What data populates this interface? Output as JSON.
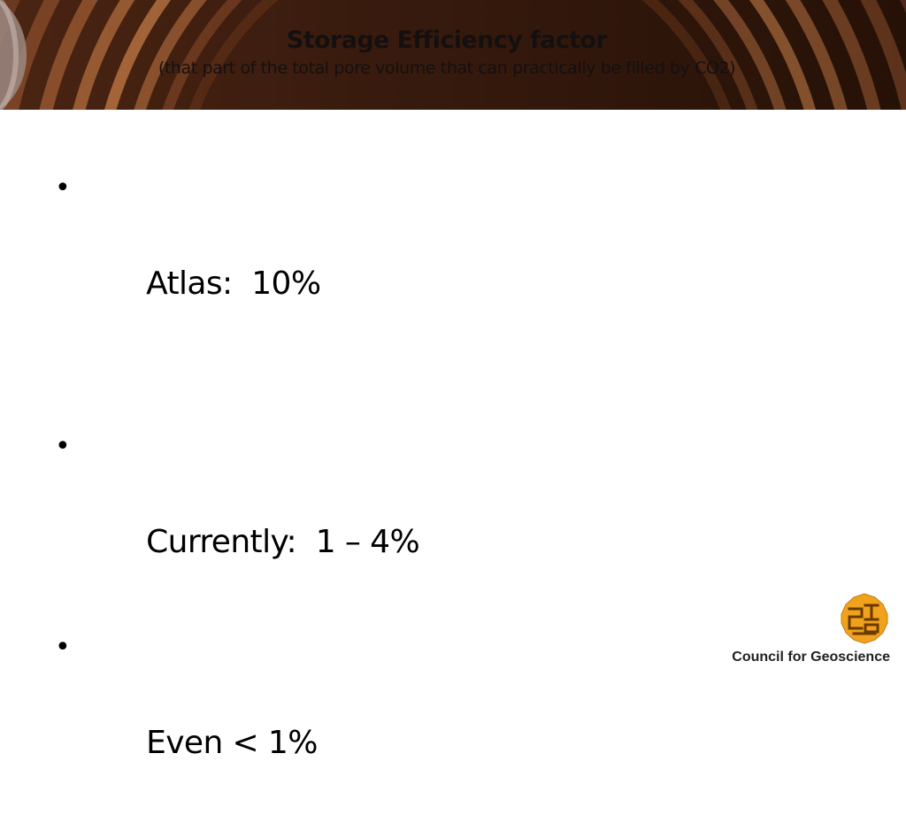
{
  "slide": {
    "title": "Storage Efficiency factor",
    "subtitle": "(that part of the total pore volume that can practically be filled by CO2)",
    "bullets": [
      "Atlas:  10%",
      "Currently:  1 – 4%",
      "Even < 1%"
    ],
    "bullet_glyph": "•"
  },
  "footer": {
    "organization": "Council for Geoscience",
    "logo_icon": "council-for-geoscience-logo-icon"
  },
  "colors": {
    "header_background": "#3f1e10",
    "logo_gold": "#f0a21d",
    "logo_dark": "#6b3a00",
    "text": "#000000"
  }
}
